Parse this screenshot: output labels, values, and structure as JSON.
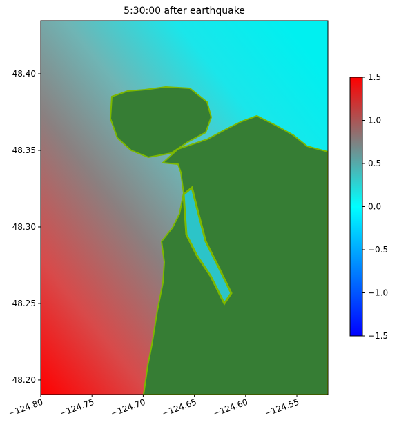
{
  "chart_data": {
    "type": "heatmap",
    "title": "5:30:00 after earthquake",
    "xlim": [
      -124.8,
      -124.5197
    ],
    "ylim": [
      48.1905,
      48.4347
    ],
    "xticks": [
      {
        "value": -124.8,
        "label": "−124.80"
      },
      {
        "value": -124.75,
        "label": "−124.75"
      },
      {
        "value": -124.7,
        "label": "−124.70"
      },
      {
        "value": -124.65,
        "label": "−124.65"
      },
      {
        "value": -124.6,
        "label": "−124.60"
      },
      {
        "value": -124.55,
        "label": "−124.55"
      }
    ],
    "yticks": [
      {
        "value": 48.2,
        "label": "48.20"
      },
      {
        "value": 48.25,
        "label": "48.25"
      },
      {
        "value": 48.3,
        "label": "48.30"
      },
      {
        "value": 48.35,
        "label": "48.35"
      },
      {
        "value": 48.4,
        "label": "48.40"
      }
    ],
    "colorbar": {
      "lim": [
        -1.5,
        1.5
      ],
      "ticks": [
        {
          "value": -1.5,
          "label": "−1.5"
        },
        {
          "value": -1.0,
          "label": "−1.0"
        },
        {
          "value": -0.5,
          "label": "−0.5"
        },
        {
          "value": 0.0,
          "label": "0.0"
        },
        {
          "value": 0.5,
          "label": "0.5"
        },
        {
          "value": 1.0,
          "label": "1.0"
        },
        {
          "value": 1.5,
          "label": "1.5"
        }
      ]
    }
  }
}
